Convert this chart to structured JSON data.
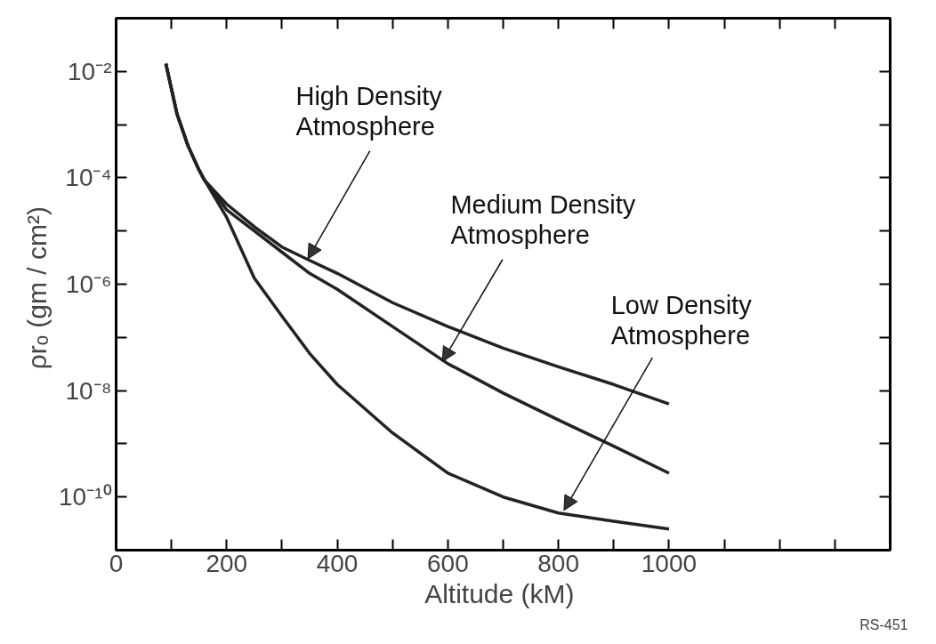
{
  "chart_data": {
    "type": "line",
    "xlabel": "Altitude  (kM)",
    "ylabel": "ρrₒ  (gm / cm²)",
    "log": "y",
    "grid": false,
    "marker": "none",
    "line_style": "solid",
    "xlim": [
      0,
      1400
    ],
    "ylim": [
      1e-11,
      0.1
    ],
    "xticks": [
      0,
      {
        "value": 100,
        "label": null
      },
      200,
      {
        "value": 300,
        "label": null
      },
      400,
      {
        "value": 500,
        "label": null
      },
      600,
      {
        "value": 700,
        "label": null
      },
      800,
      {
        "value": 900,
        "label": null
      },
      1000,
      {
        "value": 1100,
        "label": null
      },
      {
        "value": 1200,
        "label": null
      },
      {
        "value": 1300,
        "label": null
      }
    ],
    "yticks": [
      {
        "value": 1e-10,
        "label": "10⁻¹⁰"
      },
      {
        "value": 1e-09,
        "label": null
      },
      {
        "value": 1e-08,
        "label": "10⁻⁸"
      },
      {
        "value": 1e-07,
        "label": null
      },
      {
        "value": 1e-06,
        "label": "10⁻⁶"
      },
      {
        "value": 1e-05,
        "label": null
      },
      {
        "value": 0.0001,
        "label": "10⁻⁴"
      },
      {
        "value": 0.001,
        "label": null
      },
      {
        "value": 0.01,
        "label": "10⁻²"
      }
    ],
    "x": [
      90,
      110,
      130,
      150,
      160,
      200,
      250,
      300,
      350,
      400,
      500,
      600,
      700,
      800,
      900,
      1000
    ],
    "series": [
      {
        "color": "#222222",
        "values": [
          0.014,
          0.0016,
          0.0004,
          0.00014,
          9e-05,
          3.2e-05,
          1.2e-05,
          5e-06,
          2.8e-06,
          1.6e-06,
          4.5e-07,
          1.6e-07,
          6.3e-08,
          2.8e-08,
          1.3e-08,
          5.6e-09
        ]
      },
      {
        "color": "#222222",
        "values": [
          0.014,
          0.0016,
          0.0004,
          0.00014,
          9e-05,
          2.5e-05,
          1e-05,
          4e-06,
          1.6e-06,
          8e-07,
          1.6e-07,
          3.2e-08,
          9e-09,
          2.8e-09,
          9e-10,
          2.8e-10
        ]
      },
      {
        "color": "#222222",
        "values": [
          0.014,
          0.0016,
          0.0004,
          0.00014,
          9e-05,
          1.8e-05,
          1.3e-06,
          2.5e-07,
          5e-08,
          1.3e-08,
          1.6e-09,
          2.8e-10,
          1e-10,
          5e-11,
          3.5e-11,
          2.5e-11
        ]
      }
    ],
    "annotations": [
      {
        "text": "High Density\nAtmosphere",
        "x": 347,
        "y": 3e-06
      },
      {
        "text": "Medium Density\nAtmosphere",
        "x": 590,
        "y": 3.5e-08
      },
      {
        "text": "Low Density\nAtmosphere",
        "x": 810,
        "y": 5.6e-11
      },
      "RS-451"
    ]
  }
}
